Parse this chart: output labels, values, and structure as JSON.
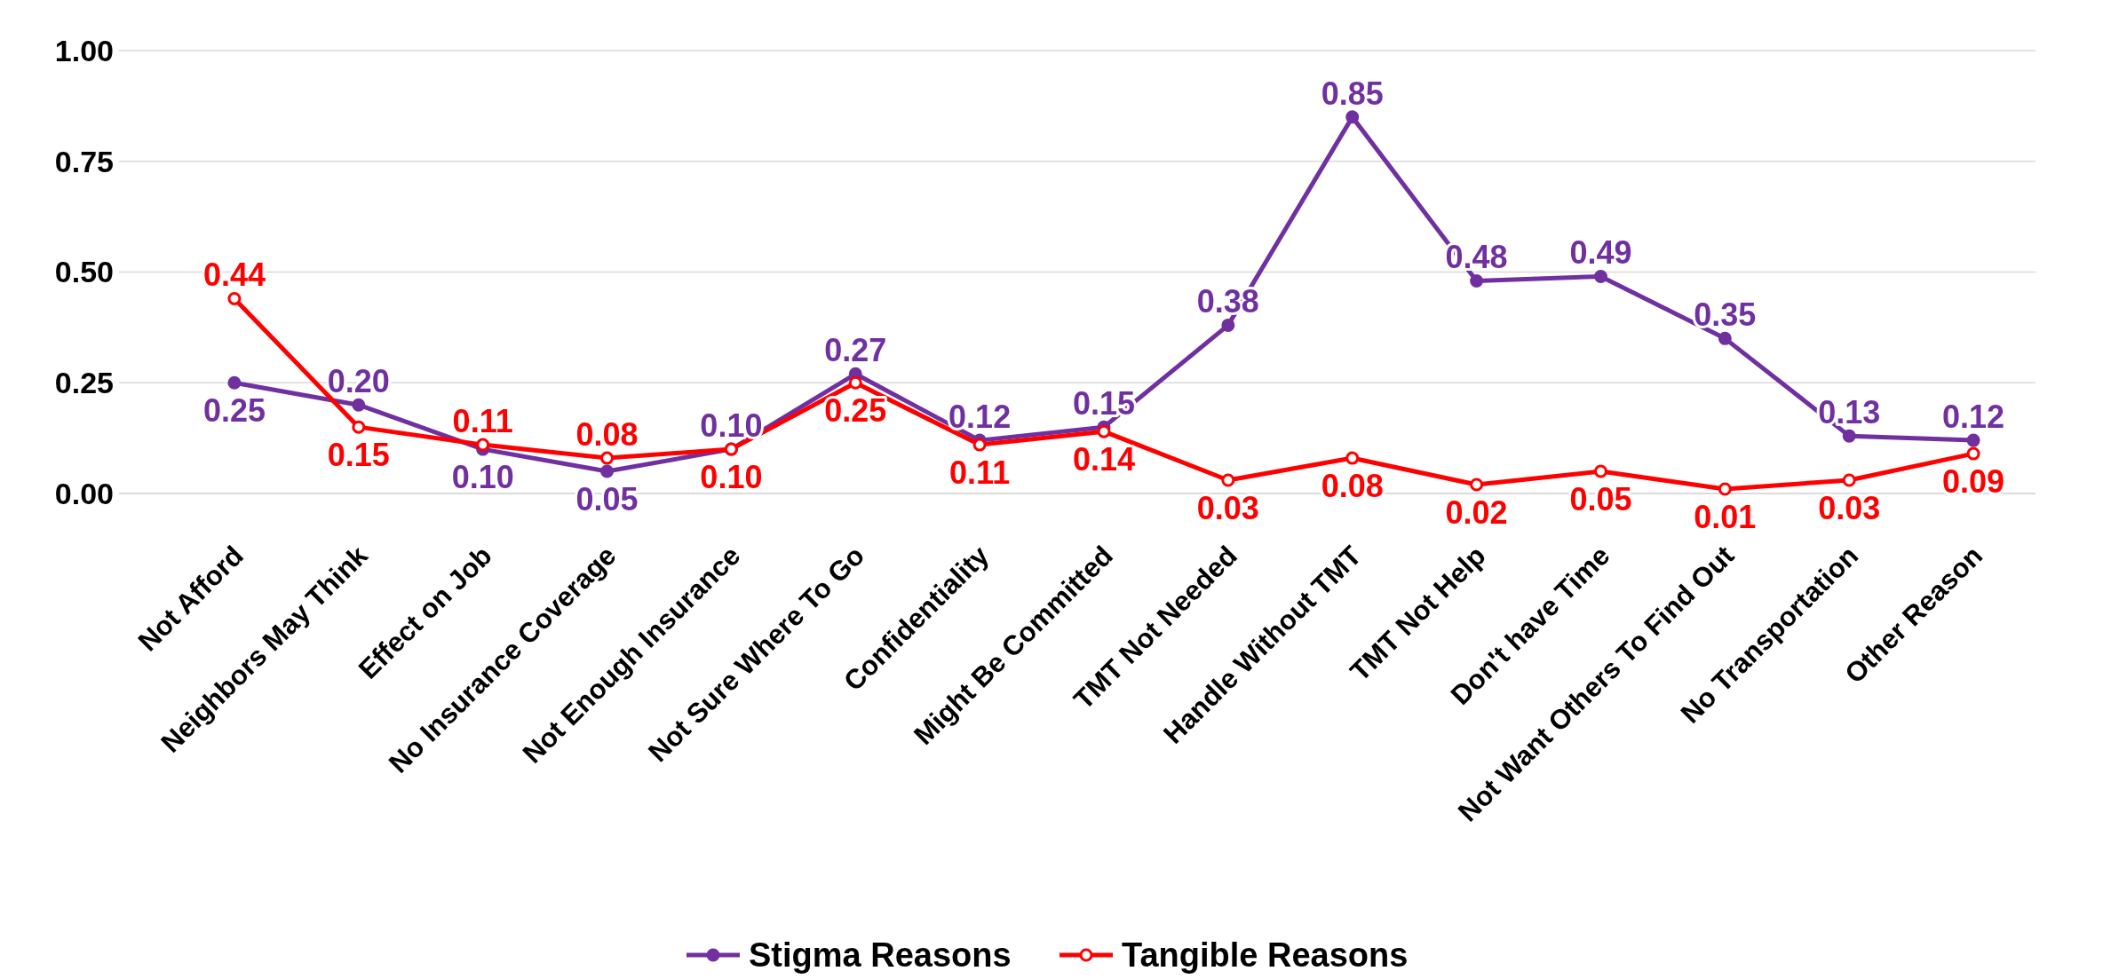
{
  "chart_data": {
    "type": "line",
    "categories": [
      "Not Afford",
      "Neighbors May Think",
      "Effect on Job",
      "No Insurance Coverage",
      "Not Enough Insurance",
      "Not Sure Where To Go",
      "Confidentiality",
      "Might Be Committed",
      "TMT Not Needed",
      "Handle Without TMT",
      "TMT Not Help",
      "Don't have Time",
      "Not Want Others To Find Out",
      "No Transportation",
      "Other Reason"
    ],
    "series": [
      {
        "name": "Stigma Reasons",
        "color": "#7030a0",
        "values": [
          0.25,
          0.2,
          0.1,
          0.05,
          0.1,
          0.27,
          0.12,
          0.15,
          0.38,
          0.85,
          0.48,
          0.49,
          0.35,
          0.13,
          0.12
        ],
        "value_labels": [
          "0.25",
          "0.20",
          "0.10",
          "0.05",
          "0.10",
          "0.27",
          "0.12",
          "0.15",
          "0.38",
          "0.85",
          "0.48",
          "0.49",
          "0.35",
          "0.13",
          "0.12"
        ]
      },
      {
        "name": "Tangible Reasons",
        "color": "#ff0000",
        "values": [
          0.44,
          0.15,
          0.11,
          0.08,
          0.1,
          0.25,
          0.11,
          0.14,
          0.03,
          0.08,
          0.02,
          0.05,
          0.01,
          0.03,
          0.09
        ],
        "value_labels": [
          "0.44",
          "0.15",
          "0.11",
          "0.08",
          "0.10",
          "0.25",
          "0.11",
          "0.14",
          "0.03",
          "0.08",
          "0.02",
          "0.05",
          "0.01",
          "0.03",
          "0.09"
        ]
      }
    ],
    "ylim": [
      0,
      1
    ],
    "yticks": [
      {
        "value": 0,
        "label": "0.00"
      },
      {
        "value": 0.25,
        "label": "0.25"
      },
      {
        "value": 0.5,
        "label": "0.50"
      },
      {
        "value": 0.75,
        "label": "0.75"
      },
      {
        "value": 1,
        "label": "1.00"
      }
    ],
    "grid": "y",
    "legend": "bottom",
    "marker": "circle",
    "line_style": "solid"
  }
}
